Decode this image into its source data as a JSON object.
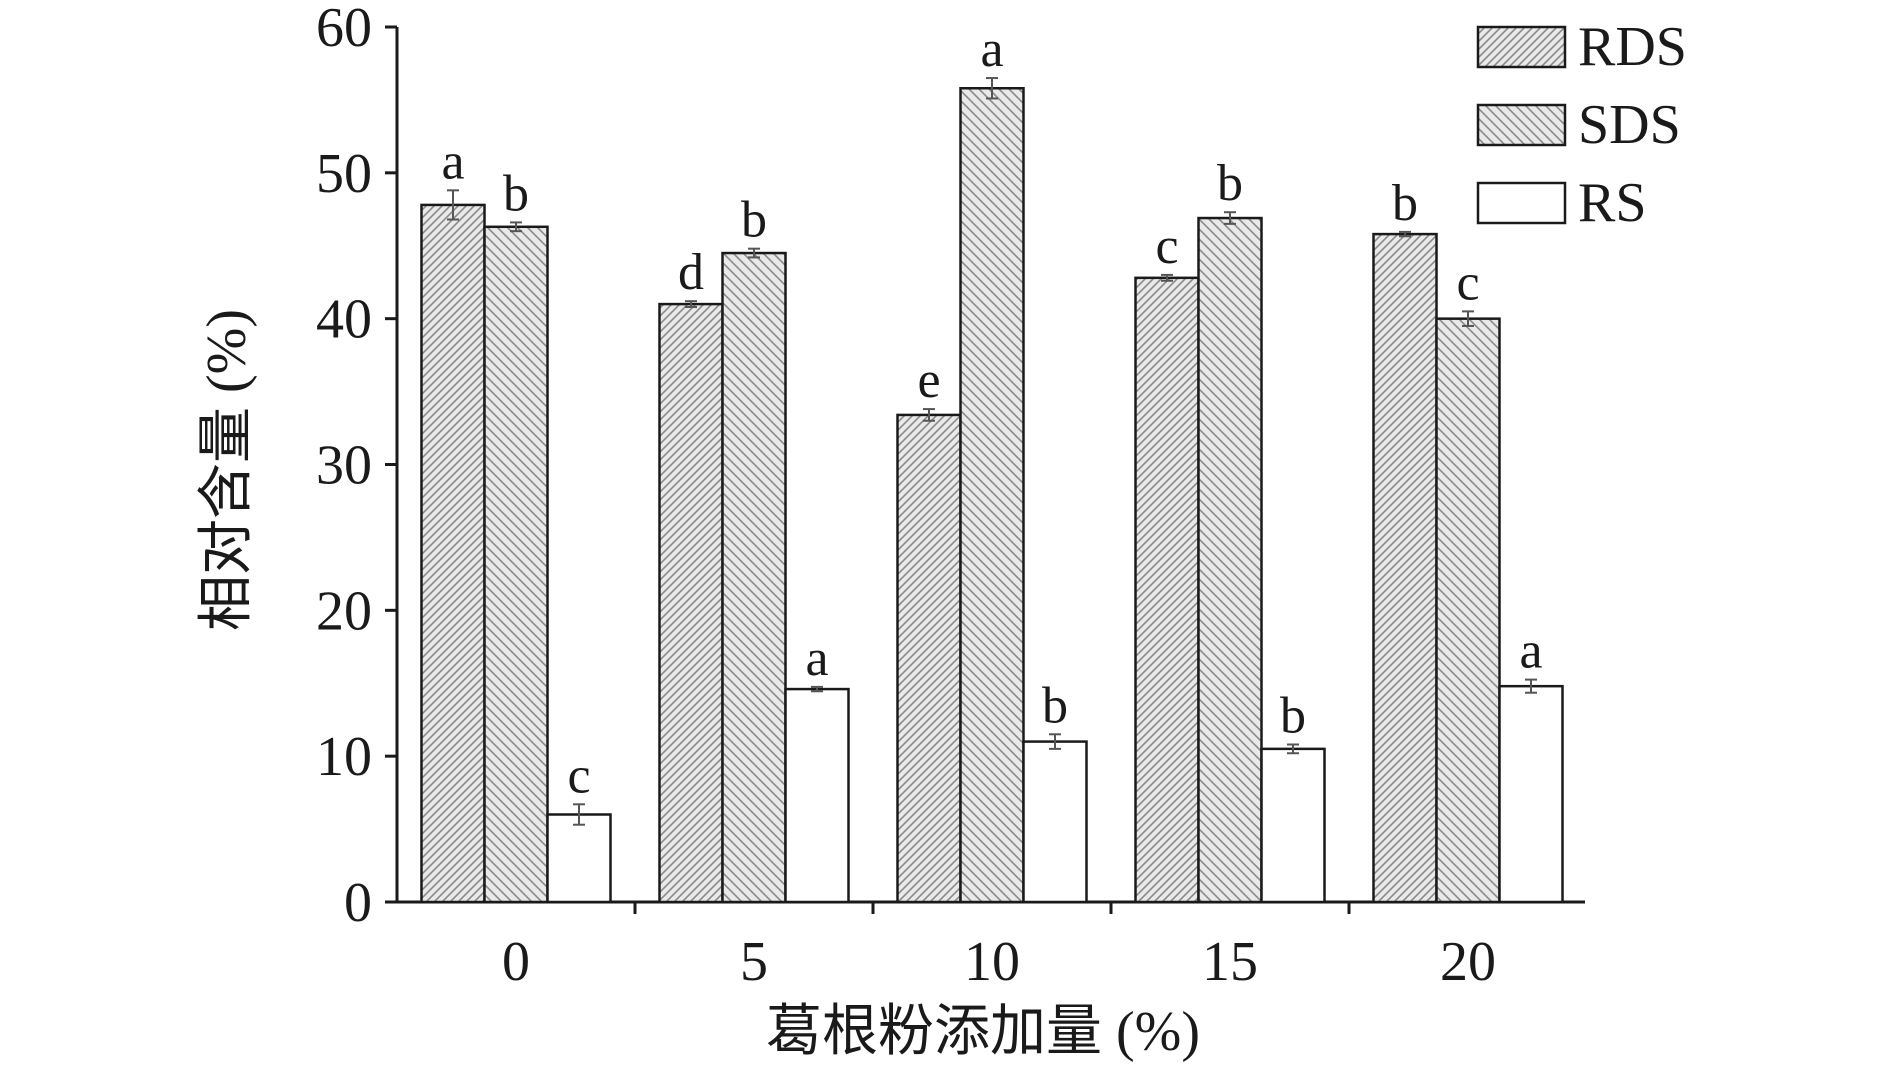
{
  "chart_data": {
    "type": "bar",
    "xlabel": "葛根粉添加量 (%)",
    "ylabel": "相对含量 (%)",
    "categories": [
      "0",
      "5",
      "10",
      "15",
      "20"
    ],
    "ylim": [
      0,
      60
    ],
    "yticks": [
      0,
      10,
      20,
      30,
      40,
      50,
      60
    ],
    "legend_position": "top-right",
    "series": [
      {
        "name": "RDS",
        "pattern": "diagonal-up",
        "values": [
          47.8,
          41.0,
          33.4,
          42.8,
          45.8
        ],
        "errors": [
          1.0,
          0.2,
          0.4,
          0.2,
          0.15
        ],
        "letters": [
          "a",
          "d",
          "e",
          "c",
          "b"
        ]
      },
      {
        "name": "SDS",
        "pattern": "diagonal-down",
        "values": [
          46.3,
          44.5,
          55.8,
          46.9,
          40.0
        ],
        "errors": [
          0.3,
          0.3,
          0.7,
          0.4,
          0.5
        ],
        "letters": [
          "b",
          "b",
          "a",
          "b",
          "c"
        ]
      },
      {
        "name": "RS",
        "pattern": "none",
        "values": [
          6.0,
          14.6,
          11.0,
          10.5,
          14.8
        ],
        "errors": [
          0.7,
          0.15,
          0.5,
          0.3,
          0.45
        ],
        "letters": [
          "c",
          "a",
          "b",
          "b",
          "a"
        ]
      }
    ]
  },
  "colors": {
    "axis": "#1a1a1a",
    "bar_fill": "#e9e9e9",
    "hatch_stroke": "#8a8a8a",
    "rs_fill": "#ffffff",
    "error_bar": "#555555"
  }
}
